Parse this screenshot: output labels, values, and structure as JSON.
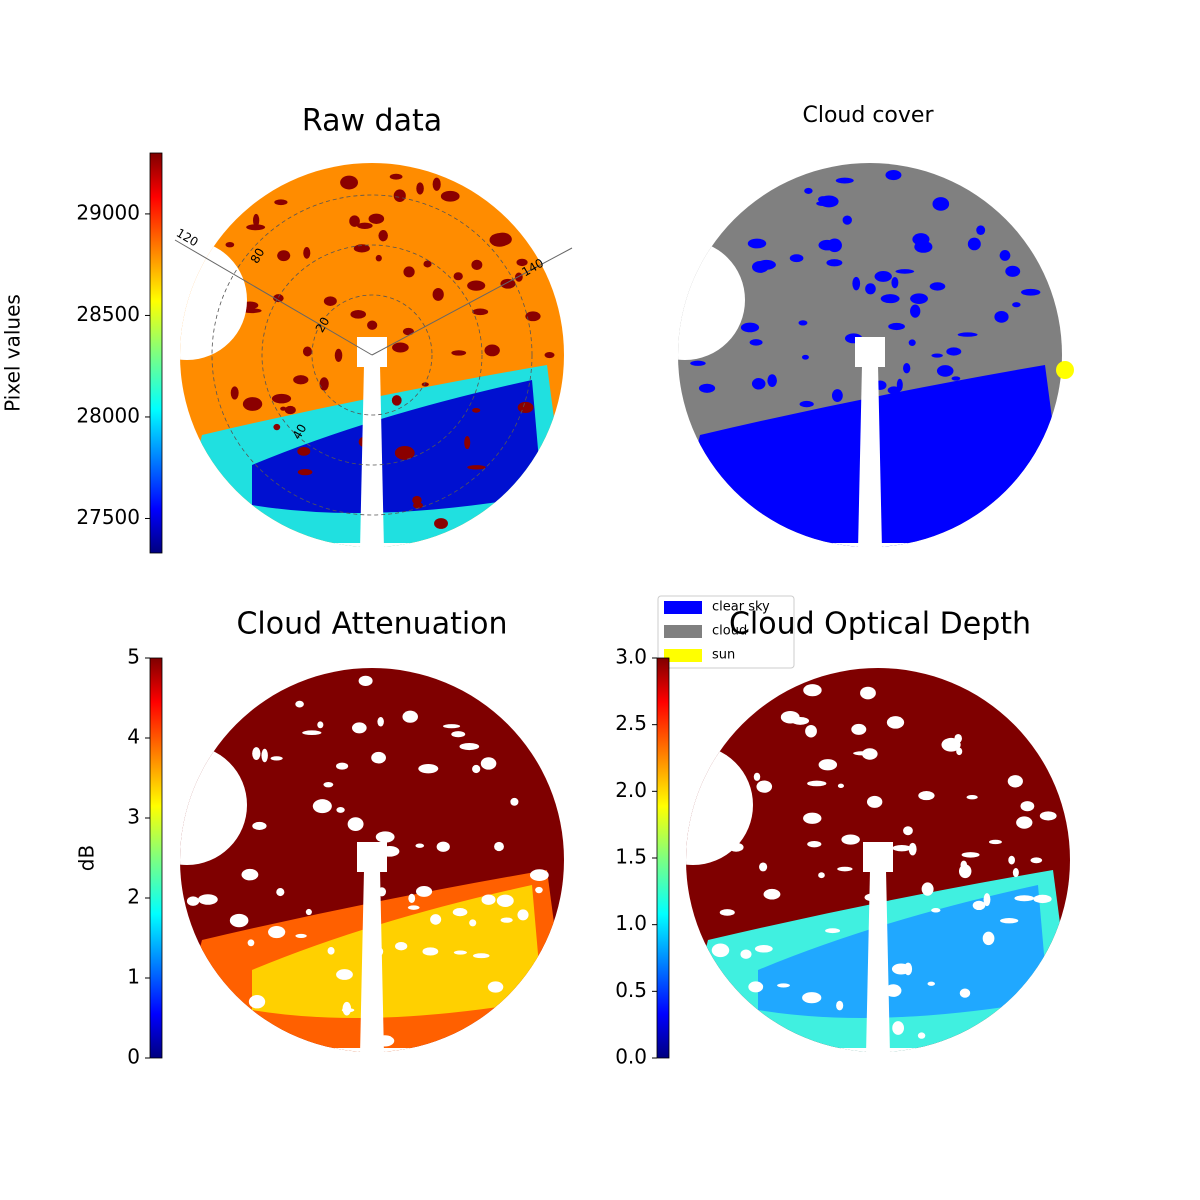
{
  "chart_data": [
    {
      "type": "image",
      "title": "Raw data",
      "colorbar_label": "Pixel values",
      "colormap": "jet",
      "ylim": [
        27330,
        29300
      ],
      "yticks": [
        27500,
        28000,
        28500,
        29000
      ],
      "annotations": [
        "120",
        "80",
        "20",
        "40",
        "140"
      ]
    },
    {
      "type": "image",
      "title": "Cloud cover",
      "series": [
        {
          "name": "clear sky",
          "color": "#0000ff"
        },
        {
          "name": "cloud",
          "color": "#808080"
        },
        {
          "name": "sun",
          "color": "#ffff00"
        }
      ]
    },
    {
      "type": "image",
      "title": "Cloud Attenuation",
      "colorbar_label": "dB",
      "colormap": "jet",
      "ylim": [
        0,
        5
      ],
      "yticks": [
        0,
        1,
        2,
        3,
        4,
        5
      ]
    },
    {
      "type": "image",
      "title": "Cloud Optical Depth",
      "colormap": "jet",
      "ylim": [
        0,
        3
      ],
      "yticks": [
        {
          "value": 0,
          "label": "0.0"
        },
        {
          "value": 0.5,
          "label": "0.5"
        },
        {
          "value": 1,
          "label": "1.0"
        },
        {
          "value": 1.5,
          "label": "1.5"
        },
        {
          "value": 2,
          "label": "2.0"
        },
        {
          "value": 2.5,
          "label": "2.5"
        },
        {
          "value": 3,
          "label": "3.0"
        }
      ]
    }
  ]
}
